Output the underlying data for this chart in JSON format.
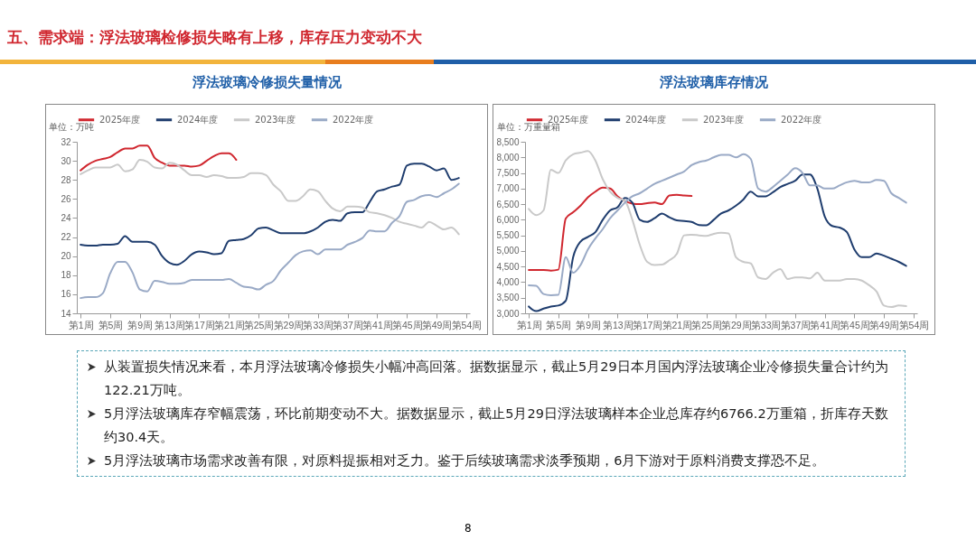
{
  "chart_data": [
    {
      "type": "line",
      "title": "浮法玻璃冷修损失量情况",
      "ylabel": "单位：万吨",
      "legend": "top",
      "categories": [
        "第1周",
        null,
        null,
        null,
        "第5周",
        null,
        null,
        null,
        "第9周",
        null,
        null,
        null,
        "第13周",
        null,
        null,
        null,
        "第17周",
        null,
        null,
        null,
        "第21周",
        null,
        null,
        null,
        "第25周",
        null,
        null,
        null,
        "第29周",
        null,
        null,
        null,
        "第33周",
        null,
        null,
        null,
        "第37周",
        null,
        null,
        null,
        "第41周",
        null,
        null,
        null,
        "第45周",
        null,
        null,
        null,
        "第49周",
        null,
        null,
        null,
        "第54周"
      ],
      "ylim": [
        14,
        32
      ],
      "yticks": [
        14,
        16,
        18,
        20,
        22,
        24,
        26,
        28,
        30,
        32
      ],
      "series": [
        {
          "name": "2025年度",
          "color": "#d0272f",
          "values": [
            29.0,
            29.6,
            30.0,
            30.2,
            30.4,
            30.9,
            31.3,
            31.3,
            31.6,
            31.6,
            30.3,
            29.8,
            29.5,
            29.5,
            29.5,
            29.4,
            29.5,
            30.0,
            30.5,
            30.8,
            30.8,
            30.1,
            null,
            null,
            null,
            null,
            null,
            null,
            null,
            null,
            null,
            null,
            null,
            null,
            null,
            null,
            null,
            null,
            null,
            null,
            null,
            null,
            null,
            null,
            null,
            null,
            null,
            null,
            null,
            null,
            null,
            null,
            null
          ]
        },
        {
          "name": "2024年度",
          "color": "#1f3d6e",
          "values": [
            21.2,
            21.1,
            21.1,
            21.2,
            21.2,
            21.3,
            22.1,
            21.5,
            21.5,
            21.5,
            21.2,
            20.0,
            19.3,
            19.1,
            19.5,
            20.2,
            20.5,
            20.4,
            20.2,
            20.3,
            21.6,
            21.7,
            21.8,
            22.2,
            22.9,
            23.0,
            22.7,
            22.4,
            22.4,
            22.4,
            22.4,
            22.6,
            23.0,
            23.6,
            23.8,
            23.7,
            24.5,
            24.6,
            24.6,
            25.7,
            26.8,
            27.0,
            27.3,
            27.5,
            29.5,
            29.7,
            29.7,
            29.4,
            29.0,
            29.2,
            28.0,
            28.2,
            null
          ]
        },
        {
          "name": "2023年度",
          "color": "#c9c9c9",
          "values": [
            28.6,
            29.0,
            29.3,
            29.3,
            29.3,
            29.6,
            28.9,
            29.1,
            30.1,
            29.9,
            29.3,
            29.2,
            29.8,
            29.6,
            29.0,
            28.5,
            28.5,
            28.3,
            28.5,
            28.4,
            28.2,
            28.2,
            28.3,
            28.7,
            28.7,
            28.5,
            27.5,
            26.8,
            25.8,
            25.8,
            26.3,
            27.0,
            26.8,
            25.8,
            25.0,
            24.7,
            25.2,
            25.2,
            25.1,
            24.6,
            24.5,
            24.3,
            24.0,
            23.6,
            23.4,
            23.2,
            23.0,
            23.6,
            23.2,
            22.8,
            23.0,
            22.3,
            null
          ]
        },
        {
          "name": "2022年度",
          "color": "#9aaac6",
          "values": [
            15.6,
            15.7,
            15.7,
            16.1,
            18.2,
            19.4,
            19.4,
            18.3,
            16.5,
            16.3,
            17.4,
            17.3,
            17.1,
            17.1,
            17.2,
            17.5,
            17.5,
            17.5,
            17.5,
            17.5,
            17.6,
            17.2,
            16.8,
            16.7,
            16.5,
            17.0,
            17.4,
            18.5,
            19.3,
            20.1,
            20.5,
            20.6,
            20.2,
            20.7,
            20.7,
            20.7,
            21.2,
            21.5,
            21.9,
            22.7,
            22.6,
            22.6,
            23.5,
            24.2,
            25.7,
            25.9,
            26.3,
            26.4,
            26.2,
            26.6,
            27.0,
            27.6,
            null
          ]
        }
      ]
    },
    {
      "type": "line",
      "title": "浮法玻璃库存情况",
      "ylabel": "单位：万重量箱",
      "legend": "top",
      "categories": [
        "第1周",
        null,
        null,
        null,
        "第5周",
        null,
        null,
        null,
        "第9周",
        null,
        null,
        null,
        "第13周",
        null,
        null,
        null,
        "第17周",
        null,
        null,
        null,
        "第21周",
        null,
        null,
        null,
        "第25周",
        null,
        null,
        null,
        "第29周",
        null,
        null,
        null,
        "第33周",
        null,
        null,
        null,
        "第37周",
        null,
        null,
        null,
        "第41周",
        null,
        null,
        null,
        "第45周",
        null,
        null,
        null,
        "第49周",
        null,
        null,
        null,
        "第54周"
      ],
      "ylim": [
        3000,
        8500
      ],
      "yticks": [
        {
          "value": 3000,
          "label": "3,000"
        },
        {
          "value": 3500,
          "label": "3,500"
        },
        {
          "value": 4000,
          "label": "4,000"
        },
        {
          "value": 4500,
          "label": "4,500"
        },
        {
          "value": 5000,
          "label": "5,000"
        },
        {
          "value": 5500,
          "label": "5,500"
        },
        {
          "value": 6000,
          "label": "6,000"
        },
        {
          "value": 6500,
          "label": "6,500"
        },
        {
          "value": 7000,
          "label": "7,000"
        },
        {
          "value": 7500,
          "label": "7,500"
        },
        {
          "value": 8000,
          "label": "8,000"
        },
        {
          "value": 8500,
          "label": "8,500"
        }
      ],
      "series": [
        {
          "name": "2025年度",
          "color": "#d0272f",
          "values": [
            4390,
            4390,
            4390,
            4370,
            4400,
            6040,
            6240,
            6450,
            6720,
            6900,
            7030,
            7000,
            6750,
            6600,
            6520,
            6500,
            6530,
            6550,
            6500,
            6780,
            6800,
            6780,
            6760,
            null,
            null,
            null,
            null,
            null,
            null,
            null,
            null,
            null,
            null,
            null,
            null,
            null,
            null,
            null,
            null,
            null,
            null,
            null,
            null,
            null,
            null,
            null,
            null,
            null,
            null,
            null,
            null,
            null,
            null
          ]
        },
        {
          "name": "2024年度",
          "color": "#1f3d6e",
          "values": [
            3220,
            3070,
            3150,
            3220,
            3250,
            3400,
            4800,
            5300,
            5450,
            5600,
            6000,
            6300,
            6400,
            6700,
            6550,
            6000,
            5930,
            6050,
            6200,
            6080,
            5980,
            5960,
            5930,
            5830,
            5820,
            6000,
            6200,
            6300,
            6450,
            6650,
            6900,
            6750,
            6750,
            6880,
            7050,
            7150,
            7250,
            7450,
            7450,
            7000,
            6100,
            5800,
            5750,
            5600,
            5050,
            4800,
            4800,
            4920,
            4850,
            4750,
            4650,
            4520,
            null
          ]
        },
        {
          "name": "2023年度",
          "color": "#c9c9c9",
          "values": [
            6350,
            6150,
            6300,
            7600,
            7500,
            7900,
            8100,
            8150,
            8200,
            7900,
            7300,
            6900,
            6700,
            6600,
            6000,
            5200,
            4650,
            4550,
            4560,
            4700,
            4900,
            5500,
            5520,
            5500,
            5480,
            5550,
            5580,
            5560,
            4800,
            4650,
            4600,
            4150,
            4100,
            4300,
            4420,
            4100,
            4150,
            4150,
            4120,
            4300,
            4050,
            4050,
            4050,
            4100,
            4100,
            4050,
            3900,
            3700,
            3250,
            3200,
            3250,
            3230,
            null
          ]
        },
        {
          "name": "2022年度",
          "color": "#9aaac6",
          "values": [
            3900,
            3880,
            3620,
            3580,
            3590,
            4800,
            4300,
            4550,
            5050,
            5400,
            5700,
            6050,
            6300,
            6550,
            6750,
            6850,
            7000,
            7150,
            7250,
            7350,
            7450,
            7550,
            7750,
            7850,
            7900,
            8000,
            8080,
            8080,
            8000,
            8100,
            7950,
            7000,
            6900,
            7050,
            7250,
            7450,
            7650,
            7500,
            7100,
            7100,
            7000,
            7000,
            7100,
            7200,
            7250,
            7200,
            7200,
            7280,
            7250,
            6850,
            6700,
            6550,
            null
          ]
        }
      ]
    },
    {
      "type": "other",
      "title": "五、需求端：浮法玻璃检修损失略有上移，库存压力变动不大",
      "annotations": [
        "从装置损失情况来看，本月浮法玻璃冷修损失小幅冲高回落。据数据显示，截止5月29日本月国内浮法玻璃企业冷修损失量合计约为122.21万吨。",
        "5月浮法玻璃库存窄幅震荡，环比前期变动不大。据数据显示，截止5月29日浮法玻璃样本企业总库存约6766.2万重箱，折库存天数约30.4天。",
        "5月浮法玻璃市场需求改善有限，对原料提振相对乏力。鉴于后续玻璃需求淡季预期，6月下游对于原料消费支撑恐不足。",
        "8"
      ]
    }
  ]
}
